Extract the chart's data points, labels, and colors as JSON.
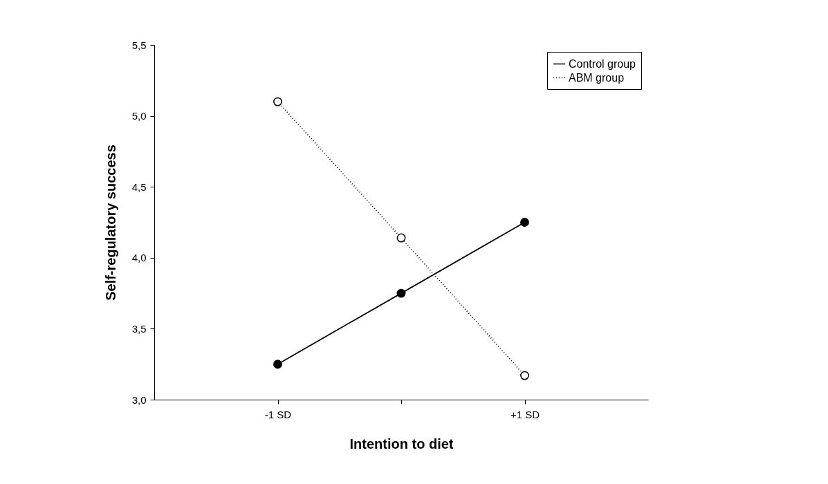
{
  "chart_data": {
    "type": "line",
    "xlabel": "Intention to diet",
    "ylabel": "Self-regulatory success",
    "x": [
      -1,
      0,
      1
    ],
    "series": [
      {
        "name": "Control group",
        "color": "#000000",
        "line_style": "solid",
        "values": [
          3.25,
          3.75,
          4.25
        ]
      },
      {
        "name": "ABM group",
        "color": "#000000",
        "line_style": "dotted",
        "values": [
          5.1,
          4.14,
          3.17
        ]
      }
    ],
    "xlim": [
      -2,
      2
    ],
    "xticks": [
      {
        "value": -1,
        "label": "-1 SD"
      },
      {
        "value": 0,
        "label": null
      },
      {
        "value": 1,
        "label": "+1 SD"
      }
    ],
    "ylim": [
      3.0,
      5.5
    ],
    "yticks": [
      {
        "value": 3.0,
        "label": "3,0"
      },
      {
        "value": 3.5,
        "label": "3,5"
      },
      {
        "value": 4.0,
        "label": "4,0"
      },
      {
        "value": 4.5,
        "label": "4,5"
      },
      {
        "value": 5.0,
        "label": "5,0"
      },
      {
        "value": 5.5,
        "label": "5,5"
      }
    ],
    "grid": false,
    "legend": "top right",
    "marker": "circle"
  }
}
